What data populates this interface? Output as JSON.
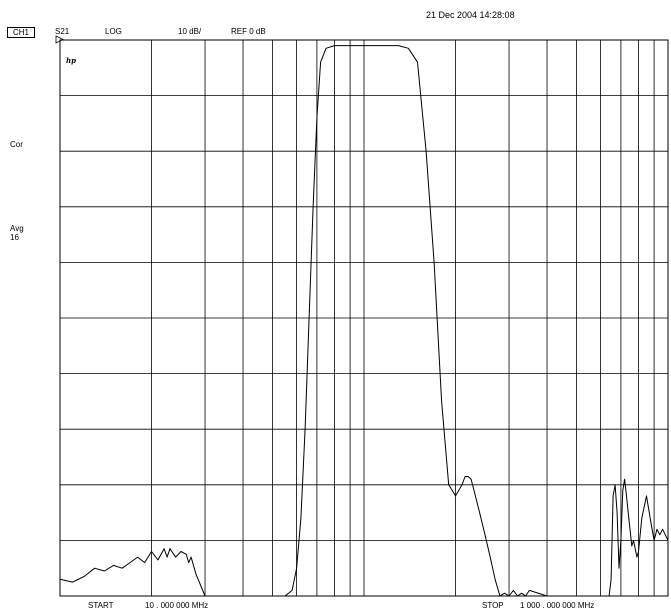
{
  "header": {
    "datetime": "21 Dec 2004  14:28:08",
    "channel": "CH1",
    "parameter": "S21",
    "format": "LOG",
    "scale": "10 dB/",
    "reference": "REF 0 dB"
  },
  "side_labels": {
    "correction": "Cor",
    "averaging": "Avg",
    "avg_factor": "16"
  },
  "logo": "hp",
  "footer": {
    "start_label": "START",
    "start_value": "10 . 000   000   MHz",
    "stop_label": "STOP",
    "stop_value": "1  000  . 000   000   MHz"
  },
  "chart_data": {
    "type": "line",
    "title": "",
    "xlabel": "",
    "ylabel": "",
    "xscale": "log",
    "x_unit": "MHz",
    "y_unit": "dB",
    "xlim": [
      10,
      1000
    ],
    "ylim": [
      -100,
      0
    ],
    "grid": true,
    "series": [
      {
        "name": "",
        "x": [
          10,
          11,
          12,
          13,
          14,
          15,
          16,
          17,
          18,
          19,
          20,
          21,
          22,
          22.5,
          23,
          24,
          25,
          26,
          26.5,
          27,
          28,
          30,
          32,
          34,
          36,
          38,
          40,
          45,
          50,
          55,
          58,
          60,
          62,
          64,
          66,
          68,
          70,
          72,
          75,
          80,
          90,
          100,
          110,
          120,
          130,
          140,
          150,
          160,
          170,
          180,
          190,
          200,
          210,
          215,
          220,
          225,
          230,
          240,
          250,
          260,
          270,
          280,
          290,
          300,
          310,
          320,
          330,
          340,
          350,
          400,
          450,
          500,
          550,
          600,
          640,
          650,
          660,
          670,
          680,
          690,
          700,
          710,
          720,
          730,
          740,
          750,
          760,
          770,
          780,
          790,
          800,
          820,
          850,
          880,
          900,
          920,
          940,
          960,
          980,
          1000
        ],
        "y": [
          -97,
          -97.5,
          -96.5,
          -95,
          -95.5,
          -94.5,
          -95,
          -94,
          -93,
          -94,
          -92,
          -93.5,
          -91.5,
          -93,
          -91.5,
          -93,
          -92,
          -92.5,
          -94,
          -93,
          -96,
          -100,
          -100,
          -100,
          -100,
          -100,
          -100,
          -100,
          -100,
          -100,
          -99,
          -95,
          -86,
          -70,
          -50,
          -30,
          -14,
          -4,
          -1.5,
          -1,
          -1,
          -1,
          -1,
          -1,
          -1,
          -1.5,
          -4,
          -20,
          -40,
          -65,
          -80,
          -82,
          -80,
          -78.5,
          -78.5,
          -79,
          -81,
          -85,
          -89,
          -93,
          -97,
          -100,
          -99.5,
          -100,
          -99,
          -100,
          -99.5,
          -100,
          -99,
          -100,
          -100,
          -100,
          -100,
          -100,
          -100,
          -97,
          -82,
          -80,
          -85,
          -95,
          -90,
          -81,
          -79,
          -82,
          -85,
          -88,
          -91,
          -90,
          -91.5,
          -93,
          -92,
          -86,
          -82,
          -87,
          -90,
          -88,
          -89,
          -88,
          -89,
          -90
        ]
      }
    ]
  }
}
